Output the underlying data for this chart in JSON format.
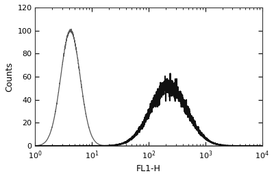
{
  "title": "",
  "xlabel": "FL1-H",
  "ylabel": "Counts",
  "xlim_log": [
    0,
    4
  ],
  "ylim": [
    0,
    120
  ],
  "yticks": [
    0,
    20,
    40,
    60,
    80,
    100,
    120
  ],
  "background_color": "#ffffff",
  "thin_curve": {
    "color": "#555555",
    "linewidth": 0.9,
    "peak_log_x": 0.62,
    "peak_y": 100,
    "sigma": 0.17
  },
  "thick_curve": {
    "color": "#111111",
    "linewidth": 1.5,
    "peak_log_x": 2.35,
    "peak_y": 52,
    "sigma": 0.32,
    "noise_scale": 4.0
  }
}
